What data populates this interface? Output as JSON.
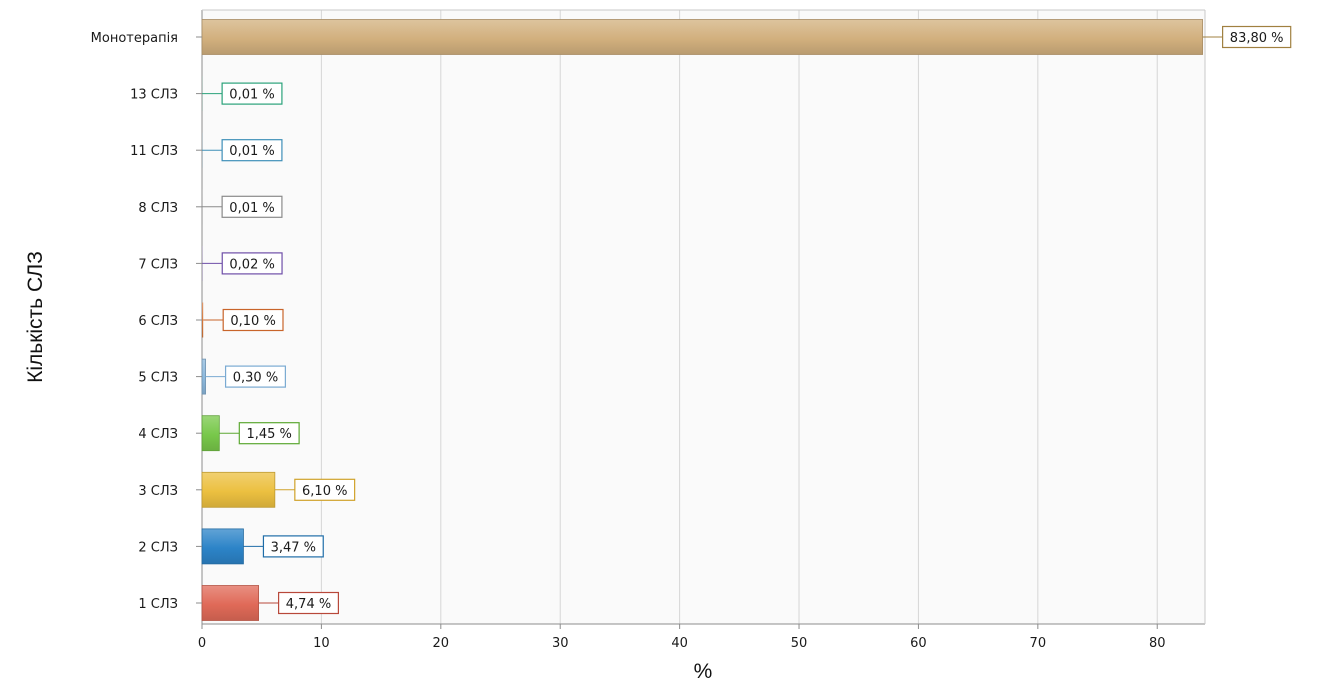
{
  "chart_data": {
    "type": "bar",
    "orientation": "horizontal",
    "categories": [
      "Монотерапія",
      "13 СЛЗ",
      "11 СЛЗ",
      "8 СЛЗ",
      "7 СЛЗ",
      "6 СЛЗ",
      "5 СЛЗ",
      "4 СЛЗ",
      "3 СЛЗ",
      "2 СЛЗ",
      "1 СЛЗ"
    ],
    "values": [
      83.8,
      0.01,
      0.01,
      0.01,
      0.02,
      0.1,
      0.3,
      1.45,
      6.1,
      3.47,
      4.74
    ],
    "data_labels": [
      "83,80 %",
      "0,01 %",
      "0,01 %",
      "0,01 %",
      "0,02 %",
      "0,10 %",
      "0,30 %",
      "1,45 %",
      "6,10 %",
      "3,47 %",
      "4,74 %"
    ],
    "colors": [
      "#d2b07e",
      "#2aa27a",
      "#3e8fb8",
      "#8a8a8a",
      "#7a5cae",
      "#d2763a",
      "#8cb8dc",
      "#78c84a",
      "#ecc040",
      "#2c84c8",
      "#e06a58"
    ],
    "label_border_colors": [
      "#a08040",
      "#2aa27a",
      "#3e8fb8",
      "#8a8a8a",
      "#6e4ea8",
      "#c8642a",
      "#7aaad2",
      "#5ca832",
      "#d0a22a",
      "#1f6da8",
      "#b8483a"
    ],
    "xlabel": "%",
    "ylabel": "Кількість СЛЗ",
    "xlim": [
      0,
      84
    ],
    "xticks": [
      0,
      10,
      20,
      30,
      40,
      50,
      60,
      70,
      80
    ],
    "grid": true
  }
}
